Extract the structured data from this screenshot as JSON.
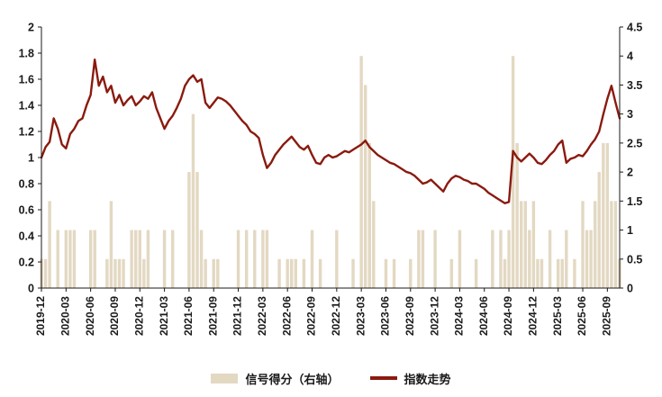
{
  "chart_data": {
    "type": "bar",
    "subtype": "bar+line combo",
    "title": "",
    "grid": false,
    "legend_position": "bottom-center",
    "left_axis": {
      "min": 0,
      "max": 2,
      "step": 0.2,
      "ticks": [
        "2",
        "1.8",
        "1.6",
        "1.4",
        "1.2",
        "1",
        "0.8",
        "0.6",
        "0.4",
        "0.2",
        "0"
      ]
    },
    "right_axis": {
      "min": 0,
      "max": 4.5,
      "step": 0.5,
      "ticks": [
        "4.5",
        "4",
        "3.5",
        "3",
        "2.5",
        "2",
        "1.5",
        "1",
        "0.5",
        "0"
      ]
    },
    "x_tick_labels": [
      "2019-12",
      "2020-03",
      "2020-06",
      "2020-09",
      "2020-12",
      "2021-03",
      "2021-06",
      "2021-09",
      "2021-12",
      "2022-03",
      "2022-06",
      "2022-09",
      "2022-12",
      "2023-03",
      "2023-06",
      "2023-09",
      "2023-12",
      "2024-03",
      "2024-06",
      "2024-09",
      "2024-12",
      "2025-03",
      "2025-06",
      "2025-09"
    ],
    "x_tick_positions": [
      0,
      6,
      12,
      18,
      24,
      30,
      36,
      42,
      48,
      54,
      60,
      66,
      72,
      78,
      84,
      90,
      96,
      102,
      108,
      114,
      120,
      126,
      132,
      138
    ],
    "x_unit": "half-month index from 2019-12 to 2025-10",
    "series": [
      {
        "name": "信号得分（右轴）",
        "type": "bar",
        "axis": "right",
        "color": "#E3D8C2",
        "values": [
          0.5,
          0.5,
          1.5,
          0,
          1.0,
          0,
          1.0,
          1.0,
          1.0,
          0,
          0,
          0,
          1.0,
          1.0,
          0,
          0,
          0.5,
          1.5,
          0.5,
          0.5,
          0.5,
          0,
          1.0,
          1.0,
          1.0,
          0.5,
          1.0,
          0,
          0,
          0,
          1.0,
          0,
          1.0,
          0,
          0,
          0,
          2.0,
          3.0,
          2.0,
          1.0,
          0.5,
          0,
          0.5,
          0.5,
          0,
          0,
          0,
          0,
          1.0,
          0,
          1.0,
          0,
          1.0,
          0,
          1.0,
          1.0,
          0,
          0,
          0.5,
          0,
          0.5,
          0.5,
          0.5,
          0,
          0.5,
          0,
          1.0,
          0,
          0.5,
          0,
          0,
          0,
          1.0,
          0,
          0,
          0,
          0.5,
          0,
          4.0,
          3.5,
          2.5,
          1.5,
          0,
          0,
          0.5,
          0,
          0.5,
          0,
          0,
          0,
          0.5,
          0,
          1.0,
          1.0,
          0,
          0,
          1.0,
          0,
          0,
          0,
          0.5,
          0,
          1.0,
          0,
          0,
          0,
          0.5,
          0,
          0,
          0,
          1.0,
          0,
          1.0,
          0.5,
          1.0,
          4.0,
          2.5,
          1.5,
          1.5,
          1.0,
          1.5,
          0.5,
          0.5,
          0,
          1.0,
          0,
          0.5,
          0.5,
          1.0,
          0,
          0.5,
          0,
          1.5,
          1.0,
          1.0,
          1.5,
          2.0,
          2.5,
          2.5,
          1.5,
          1.5,
          0.5
        ]
      },
      {
        "name": "指数走势",
        "type": "line",
        "axis": "left",
        "color": "#8A1A0F",
        "values": [
          1.0,
          1.08,
          1.12,
          1.3,
          1.22,
          1.1,
          1.07,
          1.18,
          1.22,
          1.28,
          1.3,
          1.4,
          1.48,
          1.75,
          1.55,
          1.62,
          1.5,
          1.55,
          1.42,
          1.48,
          1.4,
          1.44,
          1.47,
          1.4,
          1.43,
          1.47,
          1.45,
          1.5,
          1.38,
          1.3,
          1.22,
          1.28,
          1.32,
          1.38,
          1.45,
          1.55,
          1.6,
          1.63,
          1.58,
          1.6,
          1.42,
          1.38,
          1.42,
          1.46,
          1.45,
          1.43,
          1.4,
          1.36,
          1.32,
          1.28,
          1.25,
          1.2,
          1.18,
          1.15,
          1.02,
          0.92,
          0.96,
          1.02,
          1.06,
          1.1,
          1.13,
          1.16,
          1.12,
          1.08,
          1.06,
          1.09,
          1.02,
          0.96,
          0.95,
          1.0,
          1.02,
          1.0,
          1.01,
          1.03,
          1.05,
          1.04,
          1.06,
          1.08,
          1.1,
          1.13,
          1.08,
          1.05,
          1.02,
          1.0,
          0.98,
          0.96,
          0.95,
          0.93,
          0.91,
          0.89,
          0.88,
          0.86,
          0.83,
          0.8,
          0.81,
          0.83,
          0.8,
          0.77,
          0.74,
          0.8,
          0.84,
          0.86,
          0.85,
          0.83,
          0.82,
          0.8,
          0.8,
          0.78,
          0.76,
          0.73,
          0.71,
          0.69,
          0.67,
          0.65,
          0.66,
          1.05,
          1.0,
          0.97,
          1.0,
          1.03,
          1.0,
          0.96,
          0.95,
          0.98,
          1.02,
          1.05,
          1.1,
          1.13,
          0.96,
          0.99,
          1.0,
          1.02,
          1.01,
          1.05,
          1.1,
          1.14,
          1.2,
          1.33,
          1.45,
          1.55,
          1.42,
          1.3
        ]
      }
    ],
    "legend": [
      {
        "label": "信号得分（右轴）",
        "swatch": "bar"
      },
      {
        "label": "指数走势",
        "swatch": "line"
      }
    ]
  },
  "colors": {
    "bar": "#E3D8C2",
    "line": "#8A1A0F",
    "axis": "#1a1a1a",
    "background": "#FFFFFF"
  }
}
